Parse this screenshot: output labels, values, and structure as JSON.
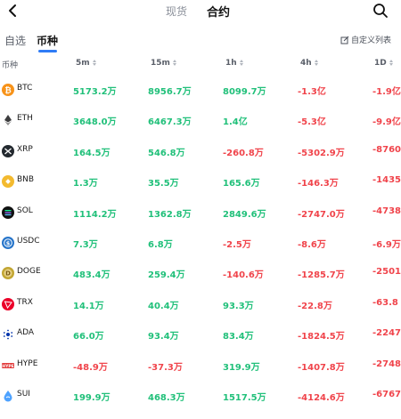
{
  "top": {
    "tab_spot": "现货",
    "tab_contract": "合约"
  },
  "subtabs": {
    "favorites": "自选",
    "coins": "币种",
    "custom_list": "自定义列表"
  },
  "columns": [
    "币种",
    "5m",
    "15m",
    "1h",
    "4h",
    "1D"
  ],
  "colors": {
    "positive": "#21c07a",
    "negative": "#f0444b",
    "accent": "#2f7cf6"
  },
  "rows": [
    {
      "symbol": "BTC",
      "icon": "btc-icon",
      "m5": "5173.2万",
      "m15": "8956.7万",
      "h1": "8099.7万",
      "h4": "-1.3亿",
      "d1": "-1.9亿"
    },
    {
      "symbol": "ETH",
      "icon": "eth-icon",
      "m5": "3648.0万",
      "m15": "6467.3万",
      "h1": "1.4亿",
      "h4": "-5.3亿",
      "d1": "-9.9亿"
    },
    {
      "symbol": "XRP",
      "icon": "xrp-icon",
      "m5": "164.5万",
      "m15": "546.8万",
      "h1": "-260.8万",
      "h4": "-5302.9万",
      "d1": "-8760"
    },
    {
      "symbol": "BNB",
      "icon": "bnb-icon",
      "m5": "1.3万",
      "m15": "35.5万",
      "h1": "165.6万",
      "h4": "-146.3万",
      "d1": "-1435"
    },
    {
      "symbol": "SOL",
      "icon": "sol-icon",
      "m5": "1114.2万",
      "m15": "1362.8万",
      "h1": "2849.6万",
      "h4": "-2747.0万",
      "d1": "-4738"
    },
    {
      "symbol": "USDC",
      "icon": "usdc-icon",
      "m5": "7.3万",
      "m15": "6.8万",
      "h1": "-2.5万",
      "h4": "-8.6万",
      "d1": "-6.9万"
    },
    {
      "symbol": "DOGE",
      "icon": "doge-icon",
      "m5": "483.4万",
      "m15": "259.4万",
      "h1": "-140.6万",
      "h4": "-1285.7万",
      "d1": "-2501"
    },
    {
      "symbol": "TRX",
      "icon": "trx-icon",
      "m5": "14.1万",
      "m15": "40.4万",
      "h1": "93.3万",
      "h4": "-22.8万",
      "d1": "-63.8"
    },
    {
      "symbol": "ADA",
      "icon": "ada-icon",
      "m5": "66.0万",
      "m15": "93.4万",
      "h1": "83.4万",
      "h4": "-1824.5万",
      "d1": "-2247"
    },
    {
      "symbol": "HYPE",
      "icon": "hype-icon",
      "m5": "-48.9万",
      "m15": "-37.3万",
      "h1": "319.9万",
      "h4": "-1407.8万",
      "d1": "-2748"
    },
    {
      "symbol": "SUI",
      "icon": "sui-icon",
      "m5": "199.9万",
      "m15": "468.3万",
      "h1": "1517.5万",
      "h4": "-4124.6万",
      "d1": "-6767"
    }
  ]
}
